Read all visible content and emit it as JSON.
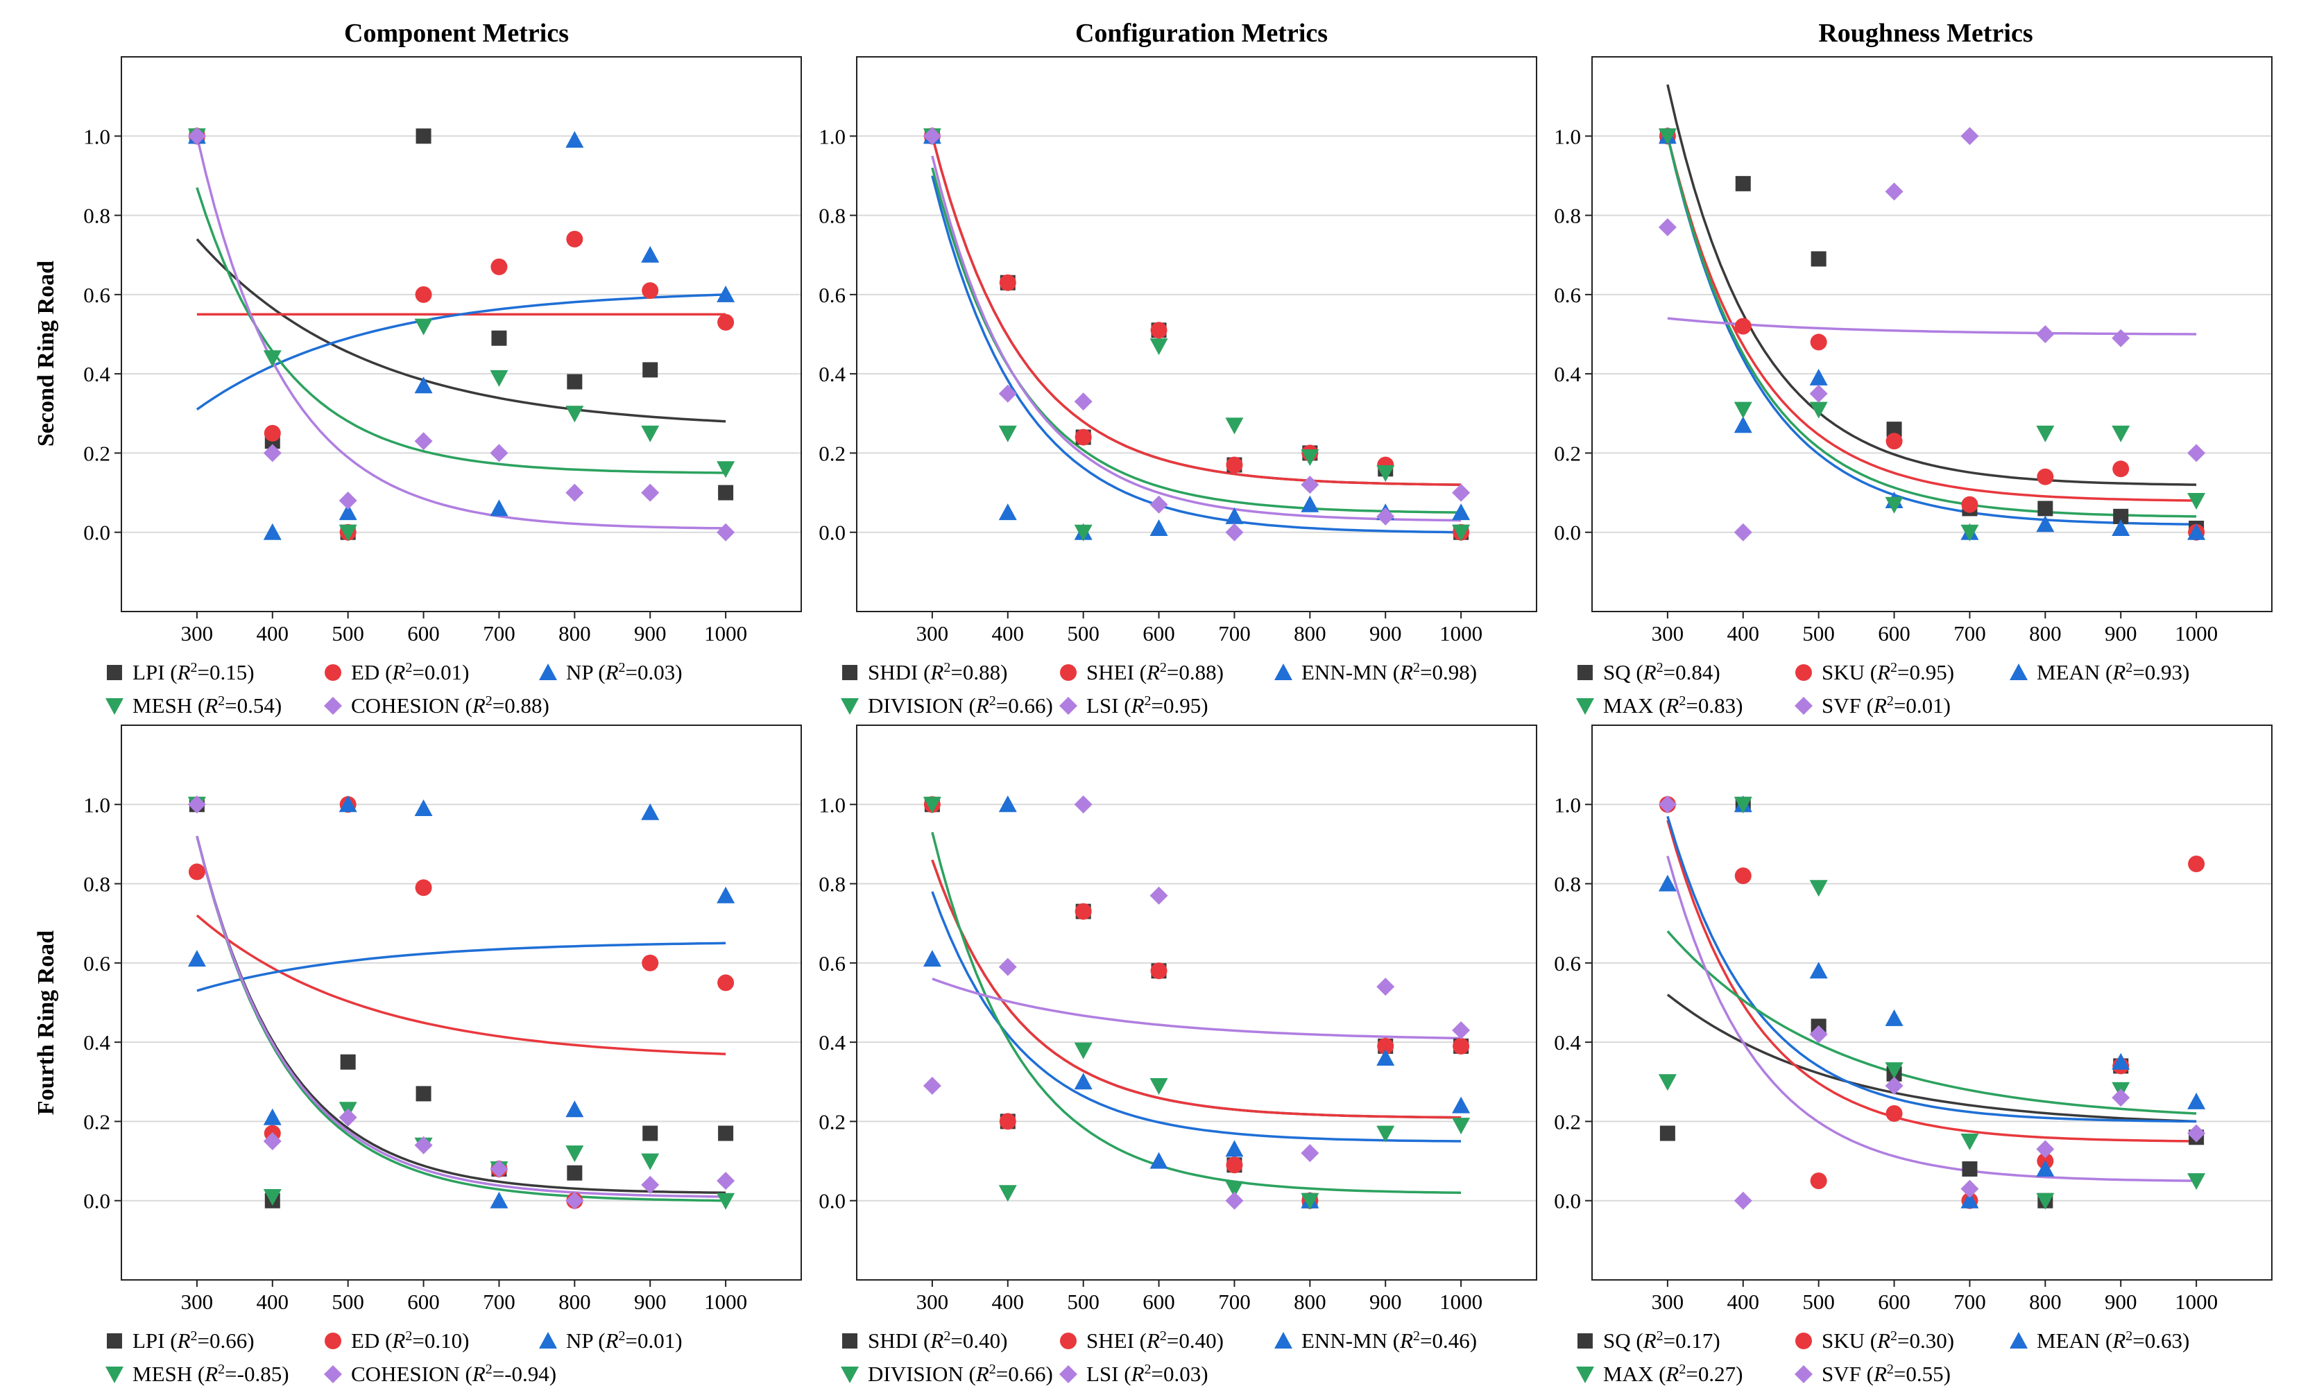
{
  "figure": {
    "column_titles": [
      "Component Metrics",
      "Configuration Metrics",
      "Roughness Metrics"
    ],
    "row_titles": [
      "Second Ring Road",
      "Fourth Ring Road"
    ],
    "colors": {
      "black": "#3a3a3a",
      "red": "#e8383d",
      "blue": "#1f6fd6",
      "green": "#2ca25f",
      "purple": "#b07ee0",
      "grid": "#d9d9d9"
    }
  },
  "chart_data": [
    {
      "type": "scatter",
      "title": "Component Metrics",
      "ylabel": "Second Ring Road",
      "x": [
        300,
        400,
        500,
        600,
        700,
        800,
        900,
        1000
      ],
      "xlim": [
        200,
        1100
      ],
      "ylim": [
        -0.2,
        1.2
      ],
      "yticks": [
        0.0,
        0.2,
        0.4,
        0.6,
        0.8,
        1.0
      ],
      "series": [
        {
          "name": "LPI",
          "r2": "0.15",
          "color": "black",
          "marker": "square",
          "values": [
            1.0,
            0.23,
            0.0,
            1.0,
            0.49,
            0.38,
            0.41,
            0.1
          ],
          "fit": [
            0.74,
            0.28
          ]
        },
        {
          "name": "ED",
          "r2": "0.01",
          "color": "red",
          "marker": "circle",
          "values": [
            1.0,
            0.25,
            0.0,
            0.6,
            0.67,
            0.74,
            0.61,
            0.53
          ],
          "fit": [
            0.55,
            0.55
          ]
        },
        {
          "name": "NP",
          "r2": "0.03",
          "color": "blue",
          "marker": "triangle-up",
          "values": [
            1.0,
            0.0,
            0.05,
            0.37,
            0.06,
            0.99,
            0.7,
            0.6
          ],
          "fit": [
            0.31,
            0.6
          ]
        },
        {
          "name": "MESH",
          "r2": "0.54",
          "color": "green",
          "marker": "triangle-down",
          "values": [
            1.0,
            0.44,
            0.0,
            0.52,
            0.39,
            0.3,
            0.25,
            0.16
          ],
          "fit": [
            0.87,
            0.15
          ]
        },
        {
          "name": "COHESION",
          "r2": "0.88",
          "color": "purple",
          "marker": "diamond",
          "values": [
            1.0,
            0.2,
            0.08,
            0.23,
            0.2,
            0.1,
            0.1,
            0.0
          ],
          "fit": [
            1.0,
            0.01
          ]
        }
      ]
    },
    {
      "type": "scatter",
      "title": "Configuration Metrics",
      "ylabel": "Second Ring Road",
      "x": [
        300,
        400,
        500,
        600,
        700,
        800,
        900,
        1000
      ],
      "xlim": [
        200,
        1100
      ],
      "ylim": [
        -0.2,
        1.2
      ],
      "yticks": [
        0.0,
        0.2,
        0.4,
        0.6,
        0.8,
        1.0
      ],
      "series": [
        {
          "name": "SHDI",
          "r2": "0.88",
          "color": "black",
          "marker": "square",
          "values": [
            1.0,
            0.63,
            0.24,
            0.51,
            0.17,
            0.2,
            0.16,
            0.0
          ],
          "fit": [
            1.0,
            0.12
          ]
        },
        {
          "name": "SHEI",
          "r2": "0.88",
          "color": "red",
          "marker": "circle",
          "values": [
            1.0,
            0.63,
            0.24,
            0.51,
            0.17,
            0.2,
            0.17,
            0.0
          ],
          "fit": [
            1.0,
            0.12
          ]
        },
        {
          "name": "ENN-MN",
          "r2": "0.98",
          "color": "blue",
          "marker": "triangle-up",
          "values": [
            1.0,
            0.05,
            0.0,
            0.01,
            0.04,
            0.07,
            0.05,
            0.05
          ],
          "fit": [
            0.9,
            0.0
          ]
        },
        {
          "name": "DIVISION",
          "r2": "0.66",
          "color": "green",
          "marker": "triangle-down",
          "values": [
            1.0,
            0.25,
            0.0,
            0.47,
            0.27,
            0.19,
            0.15,
            0.0
          ],
          "fit": [
            0.92,
            0.05
          ]
        },
        {
          "name": "LSI",
          "r2": "0.95",
          "color": "purple",
          "marker": "diamond",
          "values": [
            1.0,
            0.35,
            0.33,
            0.07,
            0.0,
            0.12,
            0.04,
            0.1
          ],
          "fit": [
            0.95,
            0.03
          ]
        }
      ]
    },
    {
      "type": "scatter",
      "title": "Roughness Metrics",
      "ylabel": "Second Ring Road",
      "x": [
        300,
        400,
        500,
        600,
        700,
        800,
        900,
        1000
      ],
      "xlim": [
        200,
        1100
      ],
      "ylim": [
        -0.2,
        1.2
      ],
      "yticks": [
        0.0,
        0.2,
        0.4,
        0.6,
        0.8,
        1.0
      ],
      "series": [
        {
          "name": "SQ",
          "r2": "0.84",
          "color": "black",
          "marker": "square",
          "values": [
            1.0,
            0.88,
            0.69,
            0.26,
            0.06,
            0.06,
            0.04,
            0.01
          ],
          "fit": [
            1.13,
            0.12
          ]
        },
        {
          "name": "SKU",
          "r2": "0.95",
          "color": "red",
          "marker": "circle",
          "values": [
            1.0,
            0.52,
            0.48,
            0.23,
            0.07,
            0.14,
            0.16,
            0.0
          ],
          "fit": [
            1.0,
            0.08
          ]
        },
        {
          "name": "MEAN",
          "r2": "0.93",
          "color": "blue",
          "marker": "triangle-up",
          "values": [
            1.0,
            0.27,
            0.39,
            0.08,
            0.0,
            0.02,
            0.01,
            0.0
          ],
          "fit": [
            1.0,
            0.02
          ]
        },
        {
          "name": "MAX",
          "r2": "0.83",
          "color": "green",
          "marker": "triangle-down",
          "values": [
            1.0,
            0.31,
            0.31,
            0.07,
            0.0,
            0.25,
            0.25,
            0.08
          ],
          "fit": [
            1.0,
            0.04
          ]
        },
        {
          "name": "SVF",
          "r2": "0.01",
          "color": "purple",
          "marker": "diamond",
          "values": [
            0.77,
            0.0,
            0.35,
            0.86,
            1.0,
            0.5,
            0.49,
            0.2
          ],
          "fit": [
            0.54,
            0.5
          ]
        }
      ]
    },
    {
      "type": "scatter",
      "title": "",
      "ylabel": "Fourth Ring Road",
      "x": [
        300,
        400,
        500,
        600,
        700,
        800,
        900,
        1000
      ],
      "xlim": [
        200,
        1100
      ],
      "ylim": [
        -0.2,
        1.2
      ],
      "yticks": [
        0.0,
        0.2,
        0.4,
        0.6,
        0.8,
        1.0
      ],
      "series": [
        {
          "name": "LPI",
          "r2": "0.66",
          "color": "black",
          "marker": "square",
          "values": [
            1.0,
            0.0,
            0.35,
            0.27,
            0.08,
            0.07,
            0.17,
            0.17
          ],
          "fit": [
            0.92,
            0.02
          ]
        },
        {
          "name": "ED",
          "r2": "0.10",
          "color": "red",
          "marker": "circle",
          "values": [
            0.83,
            0.17,
            1.0,
            0.79,
            0.08,
            0.0,
            0.6,
            0.55
          ],
          "fit": [
            0.72,
            0.37
          ]
        },
        {
          "name": "NP",
          "r2": "0.01",
          "color": "blue",
          "marker": "triangle-up",
          "values": [
            0.61,
            0.21,
            1.0,
            0.99,
            0.0,
            0.23,
            0.98,
            0.77
          ],
          "fit": [
            0.53,
            0.65
          ]
        },
        {
          "name": "MESH",
          "r2": "-0.85",
          "color": "green",
          "marker": "triangle-down",
          "values": [
            1.0,
            0.01,
            0.23,
            0.14,
            0.08,
            0.12,
            0.1,
            0.0
          ],
          "fit": [
            0.92,
            0.0
          ]
        },
        {
          "name": "COHESION",
          "r2": "-0.94",
          "color": "purple",
          "marker": "diamond",
          "values": [
            1.0,
            0.15,
            0.21,
            0.14,
            0.08,
            0.0,
            0.04,
            0.05
          ],
          "fit": [
            0.92,
            0.01
          ]
        }
      ]
    },
    {
      "type": "scatter",
      "title": "",
      "ylabel": "Fourth Ring Road",
      "x": [
        300,
        400,
        500,
        600,
        700,
        800,
        900,
        1000
      ],
      "xlim": [
        200,
        1100
      ],
      "ylim": [
        -0.2,
        1.2
      ],
      "yticks": [
        0.0,
        0.2,
        0.4,
        0.6,
        0.8,
        1.0
      ],
      "series": [
        {
          "name": "SHDI",
          "r2": "0.40",
          "color": "black",
          "marker": "square",
          "values": [
            1.0,
            0.2,
            0.73,
            0.58,
            0.09,
            0.0,
            0.39,
            0.39
          ],
          "fit": [
            0.86,
            0.21
          ]
        },
        {
          "name": "SHEI",
          "r2": "0.40",
          "color": "red",
          "marker": "circle",
          "values": [
            1.0,
            0.2,
            0.73,
            0.58,
            0.09,
            0.0,
            0.39,
            0.39
          ],
          "fit": [
            0.86,
            0.21
          ]
        },
        {
          "name": "ENN-MN",
          "r2": "0.46",
          "color": "blue",
          "marker": "triangle-up",
          "values": [
            0.61,
            1.0,
            0.3,
            0.1,
            0.13,
            0.0,
            0.36,
            0.24
          ],
          "fit": [
            0.78,
            0.15
          ]
        },
        {
          "name": "DIVISION",
          "r2": "0.66",
          "color": "green",
          "marker": "triangle-down",
          "values": [
            1.0,
            0.02,
            0.38,
            0.29,
            0.03,
            0.0,
            0.17,
            0.19
          ],
          "fit": [
            0.93,
            0.02
          ]
        },
        {
          "name": "LSI",
          "r2": "0.03",
          "color": "purple",
          "marker": "diamond",
          "values": [
            0.29,
            0.59,
            1.0,
            0.77,
            0.0,
            0.12,
            0.54,
            0.43
          ],
          "fit": [
            0.56,
            0.41
          ]
        }
      ]
    },
    {
      "type": "scatter",
      "title": "",
      "ylabel": "Fourth Ring Road",
      "x": [
        300,
        400,
        500,
        600,
        700,
        800,
        900,
        1000
      ],
      "xlim": [
        200,
        1100
      ],
      "ylim": [
        -0.2,
        1.2
      ],
      "yticks": [
        0.0,
        0.2,
        0.4,
        0.6,
        0.8,
        1.0
      ],
      "series": [
        {
          "name": "SQ",
          "r2": "0.17",
          "color": "black",
          "marker": "square",
          "values": [
            0.17,
            1.0,
            0.44,
            0.32,
            0.08,
            0.0,
            0.34,
            0.16
          ],
          "fit": [
            0.52,
            0.2
          ]
        },
        {
          "name": "SKU",
          "r2": "0.30",
          "color": "red",
          "marker": "circle",
          "values": [
            1.0,
            0.82,
            0.05,
            0.22,
            0.0,
            0.1,
            0.34,
            0.85
          ],
          "fit": [
            0.96,
            0.15
          ]
        },
        {
          "name": "MEAN",
          "r2": "0.63",
          "color": "blue",
          "marker": "triangle-up",
          "values": [
            0.8,
            1.0,
            0.58,
            0.46,
            0.0,
            0.08,
            0.35,
            0.25
          ],
          "fit": [
            0.97,
            0.2
          ]
        },
        {
          "name": "MAX",
          "r2": "0.27",
          "color": "green",
          "marker": "triangle-down",
          "values": [
            0.3,
            1.0,
            0.79,
            0.33,
            0.15,
            0.0,
            0.28,
            0.05
          ],
          "fit": [
            0.68,
            0.22
          ]
        },
        {
          "name": "SVF",
          "r2": "0.55",
          "color": "purple",
          "marker": "diamond",
          "values": [
            1.0,
            0.0,
            0.42,
            0.29,
            0.03,
            0.13,
            0.26,
            0.17
          ],
          "fit": [
            0.87,
            0.05
          ]
        }
      ]
    }
  ]
}
